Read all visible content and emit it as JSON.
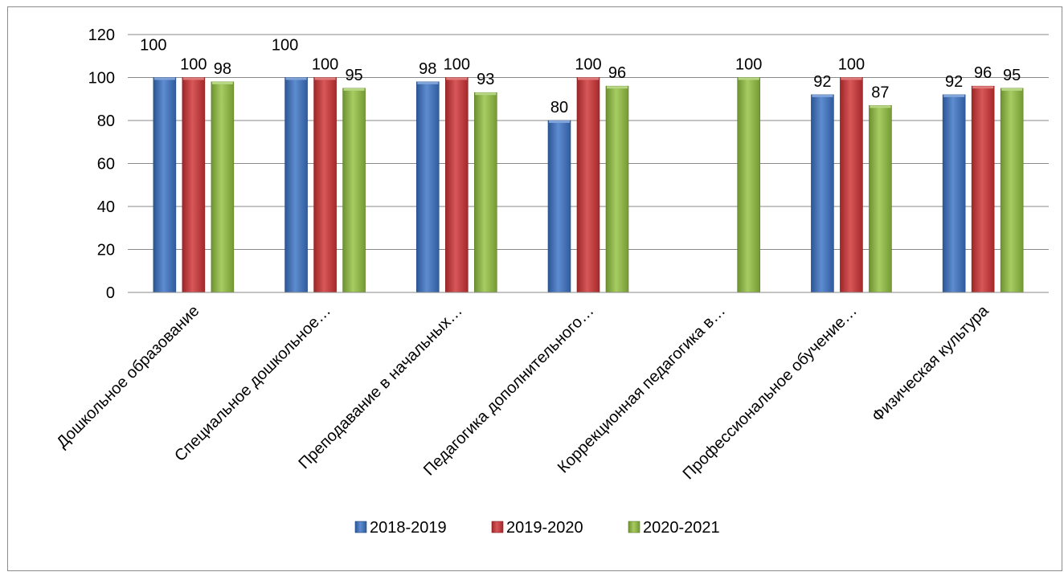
{
  "chart_data": {
    "type": "bar",
    "categories": [
      "Дошкольное образование",
      "Специальное дошкольное…",
      "Преподавание в начальных…",
      "Педагогика дополнительного…",
      "Коррекционная педагогика в…",
      "Профессиональное обучение…",
      "Физическая  культура"
    ],
    "series": [
      {
        "name": "2018-2019",
        "color": "#3b73c6",
        "values": [
          100,
          100,
          98,
          80,
          null,
          92,
          92
        ]
      },
      {
        "name": "2019-2020",
        "color": "#d03234",
        "values": [
          100,
          100,
          100,
          100,
          null,
          100,
          96
        ]
      },
      {
        "name": "2020-2021",
        "color": "#92c140",
        "values": [
          98,
          95,
          93,
          96,
          100,
          87,
          95
        ]
      }
    ],
    "yticks": [
      0,
      20,
      40,
      60,
      80,
      100,
      120
    ],
    "ylim": [
      0,
      120
    ],
    "grid": true,
    "legend": "bottom"
  }
}
